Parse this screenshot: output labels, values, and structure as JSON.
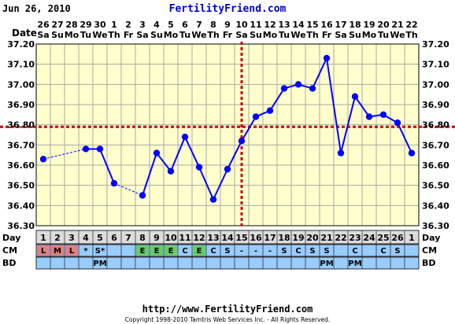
{
  "header": {
    "date": "Jun 26, 2010",
    "site": "FertilityFriend.com"
  },
  "footer": {
    "url": "http://www.FertilityFriend.com",
    "copyright": "Copyright 1998-2010 Tamtris Web Services Inc. - All Rights Reserved."
  },
  "labels": {
    "date_row": "Date",
    "day_row": "Day",
    "cm_row": "CM",
    "bd_row": "BD"
  },
  "colors": {
    "plot_bg": "#ffffcc",
    "grid": "#a8a8a8",
    "line": "#0000ff",
    "coverline": "#cc0000",
    "ovulation": "#cc0000",
    "day_row_bg": "#dcdcdc",
    "cm_row_bg": "#99ccff",
    "bd_row_bg": "#99ccff",
    "menses_bg": "#e08080",
    "eggwhite_bg": "#66cc66",
    "site_title": "#0000cc"
  },
  "chart_data": {
    "type": "line",
    "y_axis_ticks": [
      "37.20",
      "37.10",
      "37.00",
      "36.90",
      "36.80",
      "36.70",
      "36.60",
      "36.50",
      "36.40",
      "36.30"
    ],
    "ylim": [
      36.3,
      37.2
    ],
    "coverline": 36.79,
    "ovulation_day": 15,
    "grid": true,
    "dates": [
      "26",
      "27",
      "28",
      "29",
      "30",
      "1",
      "2",
      "3",
      "4",
      "5",
      "6",
      "7",
      "8",
      "9",
      "10",
      "11",
      "12",
      "13",
      "14",
      "15",
      "16",
      "17",
      "18",
      "19",
      "20",
      "21",
      "22"
    ],
    "weekdays": [
      "Sa",
      "Su",
      "Mo",
      "Tu",
      "We",
      "Th",
      "Fr",
      "Sa",
      "Su",
      "Mo",
      "Tu",
      "We",
      "Th",
      "Fr",
      "Sa",
      "Su",
      "Mo",
      "Tu",
      "We",
      "Th",
      "Fr",
      "Sa",
      "Su",
      "Mo",
      "Tu",
      "We",
      "Th"
    ],
    "cycle_days": [
      "1",
      "2",
      "3",
      "4",
      "5",
      "6",
      "7",
      "8",
      "9",
      "10",
      "11",
      "12",
      "13",
      "14",
      "15",
      "16",
      "17",
      "18",
      "19",
      "20",
      "21",
      "22",
      "23",
      "24",
      "25",
      "26",
      "1"
    ],
    "temps": [
      36.63,
      null,
      null,
      36.68,
      36.68,
      36.51,
      null,
      36.45,
      36.66,
      36.57,
      36.74,
      36.59,
      36.43,
      36.58,
      36.72,
      36.84,
      36.87,
      36.98,
      37.0,
      36.98,
      37.13,
      36.66,
      36.94,
      36.84,
      36.85,
      36.81,
      36.66
    ],
    "cm": [
      "L",
      "M",
      "L",
      "*",
      "S*",
      "",
      "",
      "E",
      "E",
      "E",
      "C",
      "E",
      "C",
      "S",
      "-",
      "-",
      "-",
      "S",
      "C",
      "S",
      "S",
      "",
      "C",
      "",
      "C",
      "S",
      ""
    ],
    "cm_type": [
      "menses",
      "menses",
      "menses",
      "",
      "",
      "",
      "",
      "eggwhite",
      "eggwhite",
      "eggwhite",
      "",
      "eggwhite",
      "",
      "",
      "",
      "",
      "",
      "",
      "",
      "",
      "",
      "",
      "",
      "",
      "",
      "",
      ""
    ],
    "bd": [
      "",
      "",
      "",
      "",
      "PM",
      "",
      "",
      "",
      "",
      "",
      "",
      "",
      "",
      "",
      "",
      "",
      "",
      "",
      "",
      "",
      "PM",
      "",
      "PM",
      "",
      "",
      "",
      ""
    ]
  }
}
